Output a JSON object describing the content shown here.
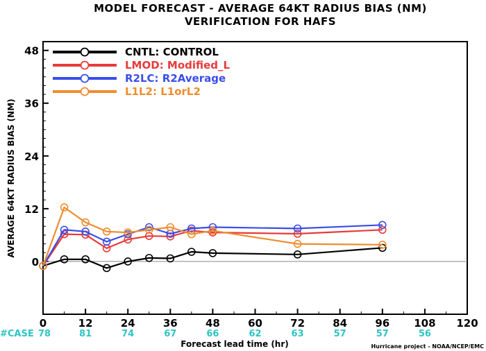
{
  "chart_data": {
    "type": "line",
    "title": "MODEL FORECAST - AVERAGE 64KT RADIUS BIAS (NM)",
    "subtitle": "VERIFICATION FOR HAFS",
    "xlabel": "Forecast lead time (hr)",
    "ylabel": "AVERAGE 64KT RADIUS BIAS (NM)",
    "credit": "Hurricane project - NOAA/NCEP/EMC",
    "xlim": [
      0,
      120
    ],
    "ylim": [
      -12,
      50
    ],
    "x_ticks": [
      0,
      12,
      24,
      36,
      48,
      60,
      72,
      84,
      96,
      108,
      120
    ],
    "y_ticks": [
      0,
      12,
      24,
      36,
      48
    ],
    "zero_line": true,
    "legend_position": "top-left",
    "series": [
      {
        "name": "CNTL: CONTROL",
        "color": "#000000",
        "x": [
          0,
          6,
          12,
          18,
          24,
          30,
          36,
          42,
          48,
          72,
          96
        ],
        "y": [
          -1.0,
          0.5,
          0.5,
          -1.5,
          0.0,
          0.8,
          0.7,
          2.2,
          1.9,
          1.6,
          3.1
        ]
      },
      {
        "name": "LMOD: Modified_L",
        "color": "#e83a3a",
        "x": [
          0,
          6,
          12,
          18,
          24,
          30,
          36,
          42,
          48,
          72,
          96
        ],
        "y": [
          -1.0,
          6.2,
          6.1,
          3.0,
          5.0,
          5.8,
          5.7,
          7.0,
          6.6,
          6.3,
          7.2
        ]
      },
      {
        "name": "R2LC: R2Average",
        "color": "#3a4de8",
        "x": [
          0,
          6,
          12,
          18,
          24,
          30,
          36,
          42,
          48,
          72,
          96
        ],
        "y": [
          -1.0,
          7.2,
          6.8,
          4.5,
          6.2,
          7.8,
          6.3,
          7.5,
          7.8,
          7.5,
          8.3
        ]
      },
      {
        "name": "L1L2: L1orL2",
        "color": "#f08c2e",
        "x": [
          0,
          6,
          12,
          18,
          24,
          30,
          36,
          42,
          48,
          72,
          96
        ],
        "y": [
          -1.0,
          12.3,
          8.9,
          6.8,
          6.6,
          7.2,
          7.8,
          6.2,
          7.0,
          4.0,
          3.8
        ]
      }
    ],
    "case_counts": {
      "label": "#CASE",
      "color": "#2ec4c4",
      "x": [
        0,
        12,
        24,
        36,
        48,
        60,
        72,
        84,
        96,
        108
      ],
      "values": [
        "78",
        "81",
        "74",
        "67",
        "66",
        "62",
        "63",
        "57",
        "57",
        "56"
      ]
    }
  }
}
